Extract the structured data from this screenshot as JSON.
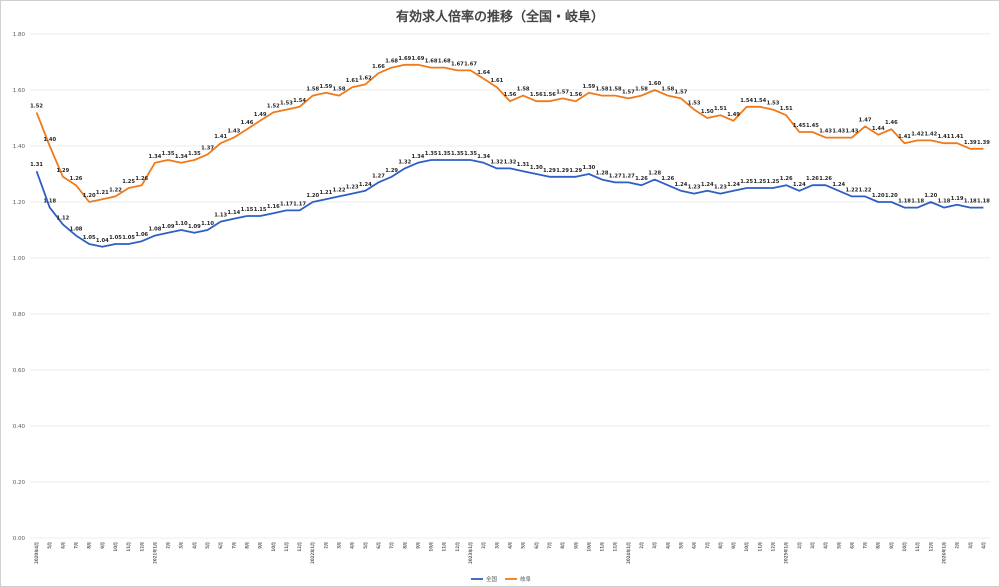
{
  "chart_data": {
    "type": "line",
    "title": "有効求人倍率の推移（全国・岐阜）",
    "xlabel": "",
    "ylabel": "",
    "ylim": [
      0,
      1.8
    ],
    "yticks": [
      "0.00",
      "0.20",
      "0.40",
      "0.60",
      "0.80",
      "1.00",
      "1.20",
      "1.40",
      "1.60",
      "1.80"
    ],
    "grid": true,
    "legend": "bottom",
    "categories": [
      "2020年4月",
      "5月",
      "6月",
      "7月",
      "8月",
      "9月",
      "10月",
      "11月",
      "12月",
      "2021年1月",
      "2月",
      "3月",
      "4月",
      "5月",
      "6月",
      "7月",
      "8月",
      "9月",
      "10月",
      "11月",
      "12月",
      "2022年1月",
      "2月",
      "3月",
      "4月",
      "5月",
      "6月",
      "7月",
      "8月",
      "9月",
      "10月",
      "11月",
      "12月",
      "2023年1月",
      "2月",
      "3月",
      "4月",
      "5月",
      "6月",
      "7月",
      "8月",
      "9月",
      "10月",
      "11月",
      "12月",
      "2024年1月",
      "2月",
      "3月",
      "4月",
      "5月",
      "6月",
      "7月",
      "8月",
      "9月",
      "10月",
      "11月",
      "12月",
      "2025年1月",
      "2月",
      "3月",
      "4月",
      "5月",
      "6月",
      "7月",
      "8月",
      "9月",
      "10月",
      "11月",
      "12月",
      "2026年1月",
      "2月",
      "3月",
      "4月"
    ],
    "series": [
      {
        "name": "全国",
        "color": "#2e5fc4",
        "values": [
          1.31,
          1.18,
          1.12,
          1.08,
          1.05,
          1.04,
          1.05,
          1.05,
          1.06,
          1.08,
          1.09,
          1.1,
          1.09,
          1.1,
          1.13,
          1.14,
          1.15,
          1.15,
          1.16,
          1.17,
          1.17,
          1.2,
          1.21,
          1.22,
          1.23,
          1.24,
          1.27,
          1.29,
          1.32,
          1.34,
          1.35,
          1.35,
          1.35,
          1.35,
          1.34,
          1.32,
          1.32,
          1.31,
          1.3,
          1.29,
          1.29,
          1.29,
          1.3,
          1.28,
          1.27,
          1.27,
          1.26,
          1.28,
          1.26,
          1.24,
          1.23,
          1.24,
          1.23,
          1.24,
          1.25,
          1.25,
          1.25,
          1.26,
          1.24,
          1.26,
          1.26,
          1.24,
          1.22,
          1.22,
          1.2,
          1.2,
          1.18,
          1.18,
          1.2,
          1.18,
          1.19,
          1.18,
          1.18
        ]
      },
      {
        "name": "岐阜",
        "color": "#f07a1a",
        "values": [
          1.52,
          1.4,
          1.29,
          1.26,
          1.2,
          1.21,
          1.22,
          1.25,
          1.26,
          1.34,
          1.35,
          1.34,
          1.35,
          1.37,
          1.41,
          1.43,
          1.46,
          1.49,
          1.52,
          1.53,
          1.54,
          1.58,
          1.59,
          1.58,
          1.61,
          1.62,
          1.66,
          1.68,
          1.69,
          1.69,
          1.68,
          1.68,
          1.67,
          1.67,
          1.64,
          1.61,
          1.56,
          1.58,
          1.56,
          1.56,
          1.57,
          1.56,
          1.59,
          1.58,
          1.58,
          1.57,
          1.58,
          1.6,
          1.58,
          1.57,
          1.53,
          1.5,
          1.51,
          1.49,
          1.54,
          1.54,
          1.53,
          1.51,
          1.45,
          1.45,
          1.43,
          1.43,
          1.43,
          1.47,
          1.44,
          1.46,
          1.41,
          1.42,
          1.42,
          1.41,
          1.41,
          1.39,
          1.39
        ]
      }
    ]
  }
}
